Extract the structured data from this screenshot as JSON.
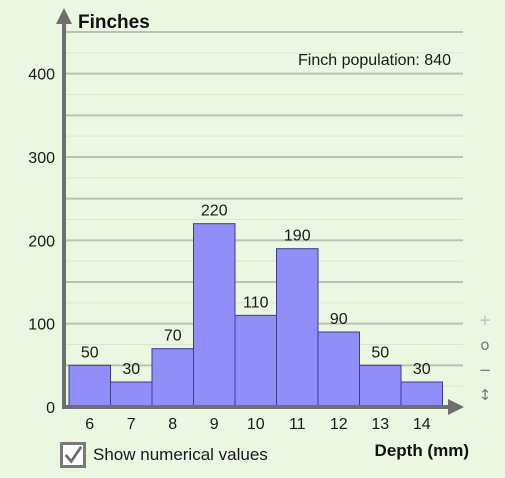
{
  "chart_data": {
    "type": "bar",
    "ylabel": "Finches",
    "xlabel": "Depth (mm)",
    "annotation": "Finch population: 840",
    "categories": [
      "6",
      "7",
      "8",
      "9",
      "10",
      "11",
      "12",
      "13",
      "14"
    ],
    "values": [
      50,
      30,
      70,
      220,
      110,
      190,
      90,
      50,
      30
    ],
    "ylim": [
      0,
      450
    ],
    "yticks": [
      "0",
      "100",
      "200",
      "300",
      "400"
    ],
    "grid": true,
    "bar_color": "#8f8ff7",
    "bar_edge_color": "#3c3c8c"
  },
  "controls": {
    "show_values_label": "Show numerical values",
    "show_values_checked": true,
    "zoom_in_symbol": "+",
    "reset_symbol": "o",
    "zoom_out_symbol": "−",
    "pan_symbol": "↕"
  },
  "colors": {
    "background": "#ebf7e1",
    "axis": "#6f6f6f"
  }
}
